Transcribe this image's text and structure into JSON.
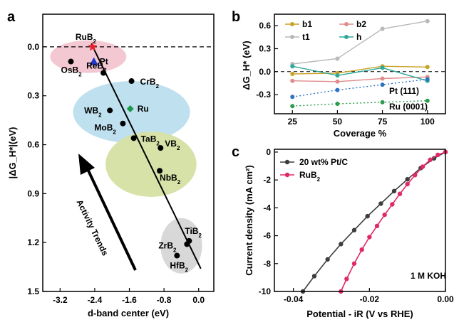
{
  "chart_data": [
    {
      "panel": "a",
      "type": "scatter",
      "xlabel": "d-band center (eV)",
      "ylabel": "|ΔG_H*|(eV)",
      "xlim": [
        -3.6,
        0.35
      ],
      "ylim": [
        1.5,
        -0.2
      ],
      "ylim_note": "y axis inverted (0.0 at top, 1.5 at bottom)",
      "xticks": [
        "-3.2",
        "-2.4",
        "-1.6",
        "-0.8",
        "0.0"
      ],
      "xtick_values": [
        -3.2,
        -2.4,
        -1.6,
        -0.8,
        0.0
      ],
      "yticks": [
        "0.0",
        "0.3",
        "0.6",
        "0.9",
        "1.2",
        "1.5"
      ],
      "ytick_values": [
        0.0,
        0.3,
        0.6,
        0.9,
        1.2,
        1.5
      ],
      "reference_line_y": 0.0,
      "points": [
        {
          "label": "RuB",
          "sub": "2",
          "x": -2.45,
          "y": 0.0,
          "marker": "star",
          "color": "#e8202a"
        },
        {
          "label": "Pt",
          "sub": "",
          "x": -2.42,
          "y": 0.09,
          "marker": "triangle",
          "color": "#2038c8"
        },
        {
          "label": "OsB",
          "sub": "2",
          "x": -2.95,
          "y": 0.09,
          "marker": "circle",
          "color": "#000000"
        },
        {
          "label": "ReB",
          "sub": "2",
          "x": -2.2,
          "y": 0.16,
          "marker": "circle",
          "color": "#000000"
        },
        {
          "label": "CrB",
          "sub": "2",
          "x": -1.55,
          "y": 0.21,
          "marker": "circle",
          "color": "#000000"
        },
        {
          "label": "Ru",
          "sub": "",
          "x": -1.58,
          "y": 0.38,
          "marker": "diamond",
          "color": "#1a9a4a"
        },
        {
          "label": "WB",
          "sub": "2",
          "x": -2.05,
          "y": 0.39,
          "marker": "circle",
          "color": "#000000"
        },
        {
          "label": "MoB",
          "sub": "2",
          "x": -1.75,
          "y": 0.47,
          "marker": "circle",
          "color": "#000000"
        },
        {
          "label": "TaB",
          "sub": "2",
          "x": -1.5,
          "y": 0.56,
          "marker": "circle",
          "color": "#000000"
        },
        {
          "label": "VB",
          "sub": "2",
          "x": -0.88,
          "y": 0.62,
          "marker": "circle",
          "color": "#000000"
        },
        {
          "label": "NbB",
          "sub": "2",
          "x": -0.9,
          "y": 0.76,
          "marker": "circle",
          "color": "#000000"
        },
        {
          "label": "TiB",
          "sub": "2",
          "x": -0.22,
          "y": 1.19,
          "marker": "circle",
          "color": "#000000"
        },
        {
          "label": "ZrB",
          "sub": "2",
          "x": -0.27,
          "y": 1.21,
          "marker": "circle",
          "color": "#000000"
        },
        {
          "label": "HfB",
          "sub": "2",
          "x": -0.5,
          "y": 1.28,
          "marker": "circle",
          "color": "#000000"
        }
      ],
      "trend_line": [
        [
          -2.48,
          -0.02
        ],
        [
          0.05,
          1.36
        ]
      ],
      "ellipses": [
        {
          "cx": -2.55,
          "cy": 0.06,
          "rx": 0.88,
          "ry": 0.1,
          "color": "#f4c8d2"
        },
        {
          "cx": -1.55,
          "cy": 0.4,
          "rx": 1.35,
          "ry": 0.19,
          "color": "#bfe0ee"
        },
        {
          "cx": -1.1,
          "cy": 0.72,
          "rx": 1.05,
          "ry": 0.2,
          "color": "#d6e2a8"
        },
        {
          "cx": -0.4,
          "cy": 1.22,
          "rx": 0.48,
          "ry": 0.17,
          "color": "#d8d8d8"
        }
      ],
      "annotation": "Activity Trends"
    },
    {
      "panel": "b",
      "type": "line",
      "xlabel": "Coverage %",
      "ylabel": "ΔG_H* (eV)",
      "categories": [
        "25",
        "50",
        "75",
        "100"
      ],
      "x": [
        25,
        50,
        75,
        100
      ],
      "xlim": [
        15,
        110
      ],
      "ylim": [
        -0.55,
        0.75
      ],
      "yticks": [
        "0.6",
        "0.3",
        "0.0",
        "-0.3"
      ],
      "ytick_values": [
        0.6,
        0.3,
        0.0,
        -0.3
      ],
      "reference_line_y": 0.0,
      "series": [
        {
          "name": "b1",
          "values": [
            -0.03,
            -0.02,
            0.07,
            0.06
          ],
          "color": "#c9a227",
          "style": "solid"
        },
        {
          "name": "b2",
          "values": [
            -0.12,
            -0.13,
            -0.09,
            -0.07
          ],
          "color": "#e08c8c",
          "style": "solid"
        },
        {
          "name": "t1",
          "values": [
            0.1,
            0.17,
            0.56,
            0.66
          ],
          "color": "#b8b8b8",
          "style": "solid"
        },
        {
          "name": "h",
          "values": [
            0.07,
            -0.05,
            0.05,
            -0.12
          ],
          "color": "#2fa89a",
          "style": "solid"
        },
        {
          "name": "Pt (111)",
          "values": [
            -0.33,
            -0.24,
            -0.17,
            -0.1
          ],
          "color": "#2b74c4",
          "style": "dotted"
        },
        {
          "name": "Ru (0001)",
          "values": [
            -0.45,
            -0.42,
            -0.4,
            -0.38
          ],
          "color": "#2e9a4c",
          "style": "dotted"
        }
      ],
      "legend_placement": "top",
      "series_labels": [
        "Pt (111)",
        "Ru (0001)"
      ]
    },
    {
      "panel": "c",
      "type": "line",
      "xlabel": "Potential - iR (V vs RHE)",
      "ylabel": "Current density (mA cm²)",
      "xlim": [
        -0.045,
        0.0
      ],
      "ylim": [
        -10,
        0.2
      ],
      "xticks": [
        "-0.04",
        "-0.02",
        "0.00"
      ],
      "xtick_values": [
        -0.04,
        -0.02,
        0.0
      ],
      "yticks": [
        "0",
        "-2",
        "-4",
        "-6",
        "-8",
        "-10"
      ],
      "ytick_values": [
        0,
        -2,
        -4,
        -6,
        -8,
        -10
      ],
      "series": [
        {
          "name": "20 wt% Pt/C",
          "color": "#3d3d3d",
          "x": [
            -0.0375,
            -0.0345,
            -0.031,
            -0.0275,
            -0.024,
            -0.0205,
            -0.017,
            -0.0135,
            -0.01,
            -0.0065,
            -0.003,
            0.0
          ],
          "values": [
            -10.0,
            -8.9,
            -7.7,
            -6.6,
            -5.6,
            -4.6,
            -3.7,
            -2.8,
            -1.95,
            -1.15,
            -0.45,
            0.0
          ]
        },
        {
          "name": "RuB",
          "sub": "2",
          "color": "#e0286a",
          "x": [
            -0.0275,
            -0.026,
            -0.024,
            -0.022,
            -0.02,
            -0.018,
            -0.016,
            -0.014,
            -0.012,
            -0.01,
            -0.008,
            -0.006,
            -0.004,
            -0.002,
            0.0
          ],
          "values": [
            -10.0,
            -9.1,
            -8.0,
            -7.0,
            -6.1,
            -5.3,
            -4.5,
            -3.75,
            -3.0,
            -2.3,
            -1.65,
            -1.05,
            -0.55,
            -0.2,
            0.0
          ]
        }
      ],
      "legend_placement": "top-left",
      "annotation": "1 M KOH"
    }
  ]
}
